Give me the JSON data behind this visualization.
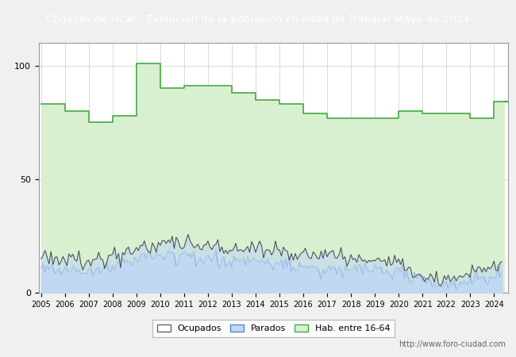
{
  "title": "Cogeces de Íscar - Evolucion de la poblacion en edad de Trabajar Mayo de 2024",
  "title_bg": "#4a7fd4",
  "title_color": "white",
  "ylim": [
    0,
    110
  ],
  "yticks": [
    0,
    50,
    100
  ],
  "years": [
    2005,
    2006,
    2007,
    2008,
    2009,
    2010,
    2011,
    2012,
    2013,
    2014,
    2015,
    2016,
    2017,
    2018,
    2019,
    2020,
    2021,
    2022,
    2023,
    2024
  ],
  "hab_16_64": [
    83,
    80,
    75,
    78,
    101,
    90,
    91,
    91,
    88,
    85,
    83,
    79,
    77,
    77,
    77,
    80,
    79,
    79,
    77,
    84
  ],
  "ocupados_base": [
    17,
    15,
    14,
    16,
    19,
    22,
    21,
    21,
    20,
    19,
    18,
    16,
    16,
    15,
    14,
    13,
    8,
    5,
    9,
    12
  ],
  "parados_base": [
    10,
    9,
    9,
    11,
    15,
    17,
    16,
    15,
    14,
    13,
    13,
    11,
    11,
    10,
    10,
    9,
    5,
    3,
    6,
    8
  ],
  "legend_labels": [
    "Ocupados",
    "Parados",
    "Hab. entre 16-64"
  ],
  "hab_color_fill": "#d8f0d0",
  "hab_color_line": "#44aa44",
  "parados_color_fill": "#c0d8f0",
  "parados_color_line": "#5588cc",
  "ocupados_color_line": "#444444",
  "background_color": "#f0f0f0",
  "plot_bg": "#ffffff",
  "grid_color": "#cccccc",
  "url": "http://www.foro-ciudad.com"
}
